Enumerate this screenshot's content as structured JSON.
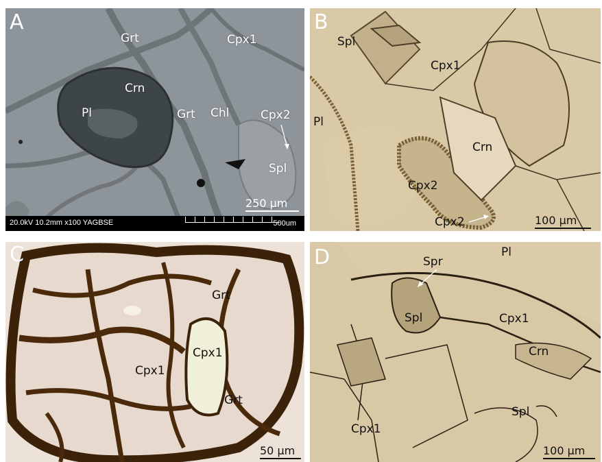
{
  "panels": {
    "a": {
      "letter": "A",
      "labels": {
        "grt_top": "Grt",
        "cpx1": "Cpx1",
        "crn": "Crn",
        "pl": "Pl",
        "grt_mid": "Grt",
        "chl": "Chl",
        "cpx2": "Cpx2",
        "spl": "Spl"
      },
      "scale": "250 µm",
      "info_bar": "20.0kV 10.2mm x100 YAGBSE",
      "info_scale": "500um"
    },
    "b": {
      "letter": "B",
      "labels": {
        "spl": "Spl",
        "cpx1": "Cpx1",
        "pl": "Pl",
        "crn": "Crn",
        "cpx2": "Cpx2",
        "cpx2_bottom": "Cpx2"
      },
      "scale": "100 µm"
    },
    "c": {
      "letter": "C",
      "labels": {
        "grt_top": "Grt",
        "cpx1_left": "Cpx1",
        "cpx1_right": "Cpx1",
        "grt_bottom": "Grt"
      },
      "scale": "50 µm"
    },
    "d": {
      "letter": "D",
      "labels": {
        "spr": "Spr",
        "pl": "Pl",
        "spl": "Spl",
        "cpx1": "Cpx1",
        "crn": "Crn",
        "spl_bottom": "Spl",
        "cpx1_bottom": "Cpx1"
      },
      "scale": "100 µm"
    }
  },
  "colors": {
    "sem_bg": "#8f969b",
    "tan": "#d9c7a3",
    "garnet": "#e6d8cc",
    "rim": "#4a2c10"
  }
}
